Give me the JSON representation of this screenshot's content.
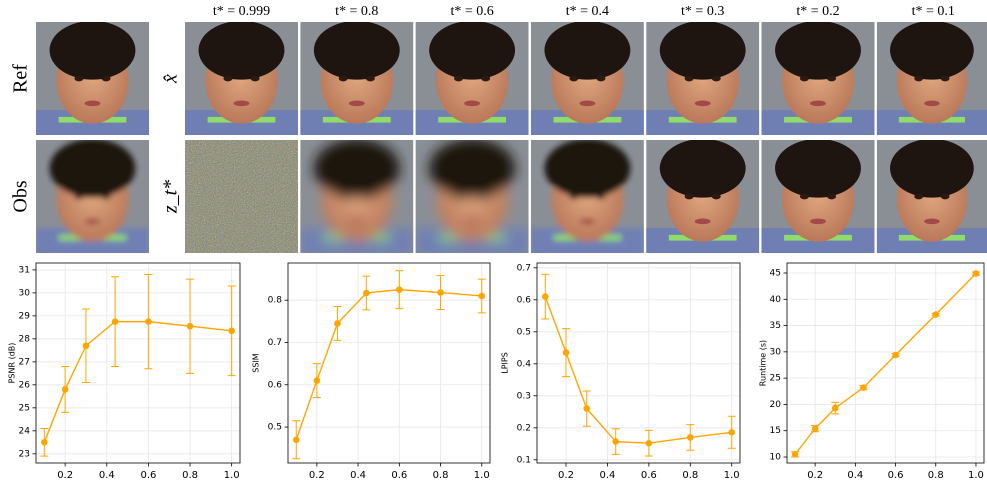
{
  "figure": {
    "row_labels": [
      "Ref",
      "Obs"
    ],
    "grid_row_labels": [
      "x̂",
      "z_t*"
    ],
    "column_headers": [
      "t* = 0.999",
      "t* = 0.8",
      "t* = 0.6",
      "t* = 0.4",
      "t* = 0.3",
      "t* = 0.2",
      "t* = 0.1"
    ]
  },
  "chart_data": [
    {
      "type": "line",
      "y_label": "PSNR (dB)",
      "color": "#ffa500",
      "grid": true,
      "x": [
        0.1,
        0.2,
        0.3,
        0.44,
        0.6,
        0.8,
        1.0
      ],
      "values": [
        23.5,
        25.8,
        27.7,
        28.75,
        28.75,
        28.55,
        28.35
      ],
      "errors": [
        0.6,
        1.0,
        1.6,
        1.95,
        2.05,
        2.05,
        1.95
      ],
      "xlim": [
        0.06,
        1.04
      ],
      "xticks": [
        0.2,
        0.4,
        0.6,
        0.8,
        {
          "value": 1,
          "label": "1.0"
        }
      ],
      "ylim": [
        22.6,
        31.3
      ],
      "yticks": [
        23,
        24,
        25,
        26,
        27,
        28,
        29,
        30,
        31
      ]
    },
    {
      "type": "line",
      "y_label": "SSIM",
      "color": "#ffa500",
      "grid": true,
      "x": [
        0.1,
        0.2,
        0.3,
        0.44,
        0.6,
        0.8,
        1.0
      ],
      "values": [
        0.47,
        0.61,
        0.745,
        0.817,
        0.825,
        0.818,
        0.81
      ],
      "errors": [
        0.045,
        0.04,
        0.04,
        0.04,
        0.045,
        0.04,
        0.04
      ],
      "xlim": [
        0.06,
        1.04
      ],
      "xticks": [
        0.2,
        0.4,
        0.6,
        0.8,
        {
          "value": 1,
          "label": "1.0"
        }
      ],
      "ylim": [
        0.415,
        0.888
      ],
      "yticks": [
        0.5,
        0.6,
        0.7,
        0.8
      ]
    },
    {
      "type": "line",
      "y_label": "LPIPS",
      "color": "#ffa500",
      "grid": true,
      "x": [
        0.1,
        0.2,
        0.3,
        0.44,
        0.6,
        0.8,
        1.0
      ],
      "values": [
        0.61,
        0.435,
        0.26,
        0.157,
        0.152,
        0.17,
        0.186
      ],
      "errors": [
        0.07,
        0.075,
        0.055,
        0.04,
        0.04,
        0.04,
        0.05
      ],
      "xlim": [
        0.06,
        1.04
      ],
      "xticks": [
        0.2,
        0.4,
        0.6,
        0.8,
        {
          "value": 1,
          "label": "1.0"
        }
      ],
      "ylim": [
        0.09,
        0.715
      ],
      "yticks": [
        0.1,
        0.2,
        0.3,
        0.4,
        0.5,
        0.6,
        0.7
      ]
    },
    {
      "type": "line",
      "y_label": "Runtime (s)",
      "color": "#ffa500",
      "grid": true,
      "x": [
        0.1,
        0.2,
        0.3,
        0.44,
        0.6,
        0.8,
        1.0
      ],
      "values": [
        10.5,
        15.4,
        19.3,
        23.2,
        29.4,
        37.1,
        44.9
      ],
      "errors": [
        0.5,
        0.6,
        1.1,
        0.4,
        0.3,
        0.2,
        0.3
      ],
      "xlim": [
        0.06,
        1.04
      ],
      "xticks": [
        0.2,
        0.4,
        0.6,
        0.8,
        {
          "value": 1,
          "label": "1.0"
        }
      ],
      "ylim": [
        8.86,
        46.9
      ],
      "yticks": [
        10,
        15,
        20,
        25,
        30,
        35,
        40,
        45
      ]
    }
  ]
}
